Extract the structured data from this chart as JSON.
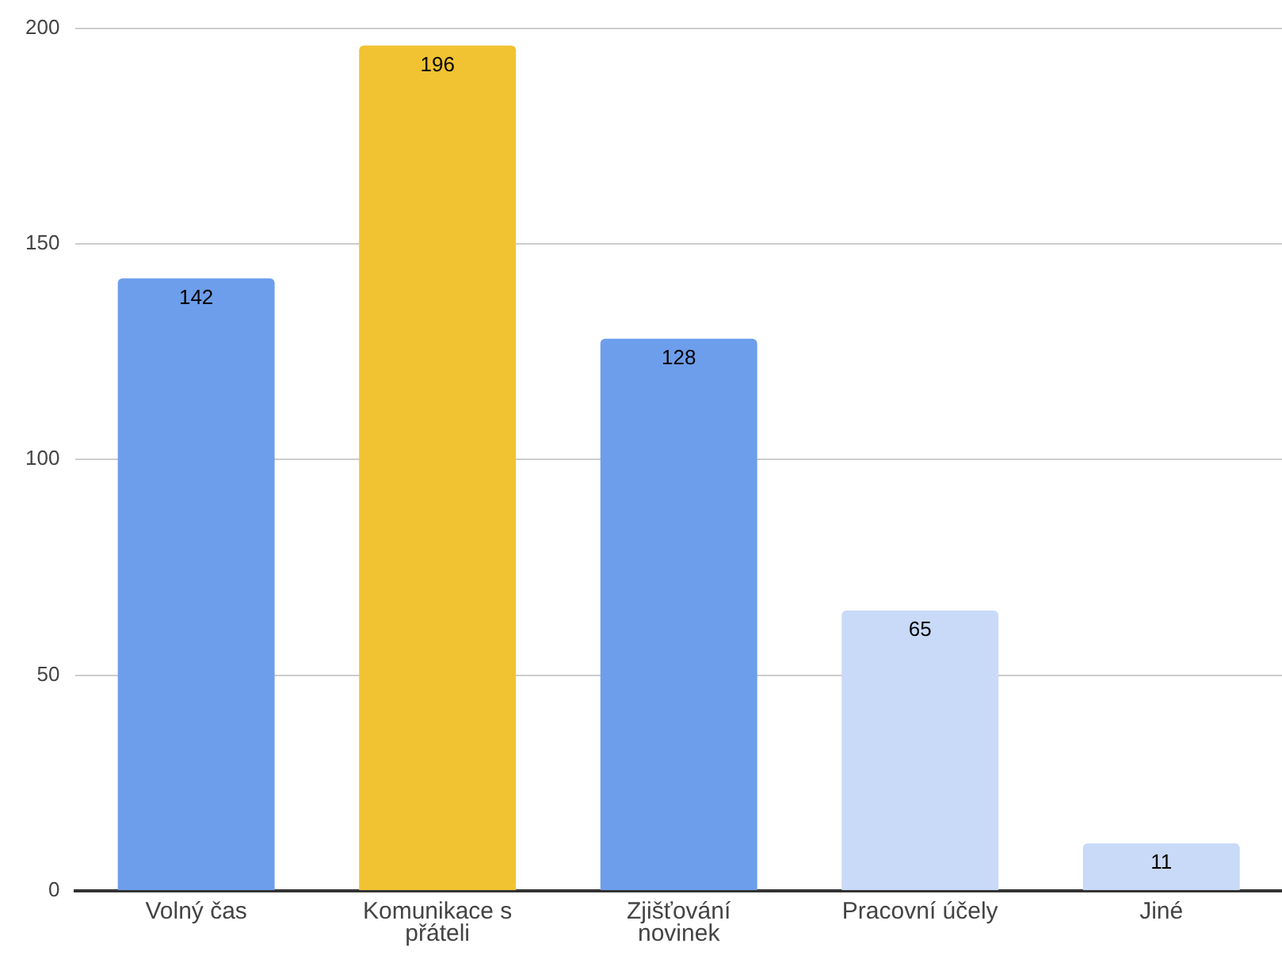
{
  "chart_data": {
    "type": "bar",
    "categories": [
      "Volný čas",
      "Komunikace s přáteli",
      "Zjišťování novinek",
      "Pracovní účely",
      "Jiné"
    ],
    "values": [
      142,
      196,
      128,
      65,
      11
    ],
    "colors": [
      "#6d9eeb",
      "#f1c232",
      "#6d9eeb",
      "#c9daf8",
      "#c9daf8"
    ],
    "ylim": [
      0,
      200
    ],
    "yticks": [
      0,
      50,
      100,
      150,
      200
    ],
    "grid": "y",
    "data_labels": true
  }
}
